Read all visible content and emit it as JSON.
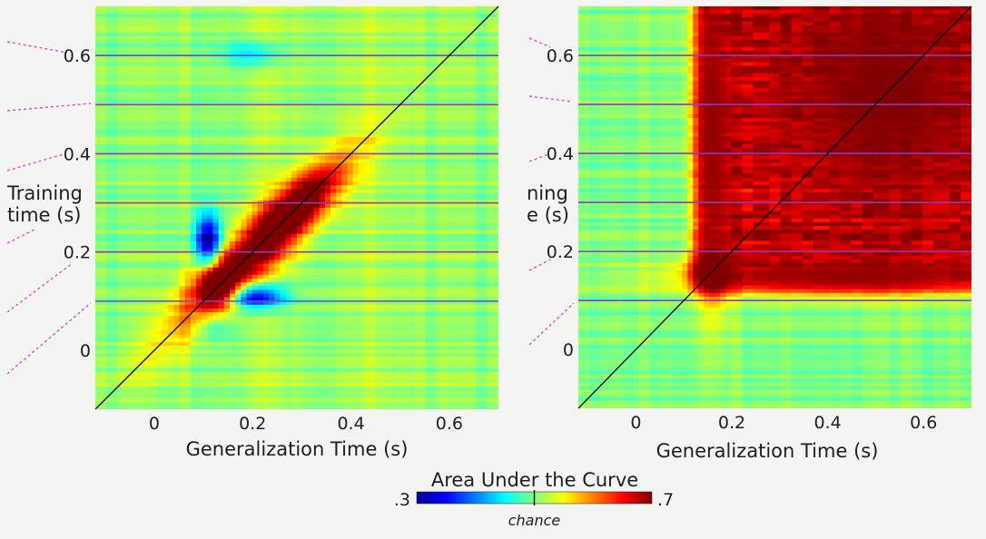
{
  "chart_data": [
    {
      "type": "heatmap",
      "panel": "left",
      "title": "",
      "xlabel": "Generalization Time (s)",
      "ylabel": "Training time (s)",
      "xlim": [
        -0.12,
        0.7
      ],
      "ylim": [
        -0.12,
        0.7
      ],
      "x_ticks": [
        0,
        0.2,
        0.4,
        0.6
      ],
      "x_tick_labels": [
        "0",
        "0.2",
        "0.4",
        "0.6"
      ],
      "y_ticks": [
        0,
        0.2,
        0.4,
        0.6
      ],
      "y_tick_labels": [
        "0",
        "0.2",
        "0.4",
        "0.6"
      ],
      "baseline_auc": 0.505,
      "blobs": [
        {
          "x": 0.2,
          "y": 0.2,
          "sx": 0.16,
          "sy": 0.035,
          "angle": 45,
          "auc": 0.7
        },
        {
          "x": 0.13,
          "y": 0.13,
          "sx": 0.03,
          "sy": 0.03,
          "angle": 0,
          "auc": 0.7
        },
        {
          "x": 0.3,
          "y": 0.3,
          "sx": 0.08,
          "sy": 0.03,
          "angle": 45,
          "auc": 0.64
        },
        {
          "x": 0.11,
          "y": 0.22,
          "sx": 0.018,
          "sy": 0.04,
          "angle": 0,
          "auc": 0.3
        },
        {
          "x": 0.2,
          "y": 0.11,
          "sx": 0.045,
          "sy": 0.018,
          "angle": 0,
          "auc": 0.3
        },
        {
          "x": 0.2,
          "y": 0.6,
          "sx": 0.04,
          "sy": 0.02,
          "angle": 0,
          "auc": 0.44
        },
        {
          "x": 0.12,
          "y": 0.05,
          "sx": 0.025,
          "sy": 0.02,
          "angle": 0,
          "auc": 0.45
        }
      ],
      "diagonal": true,
      "reference_lines_y": [
        0.1,
        0.2,
        0.3,
        0.4,
        0.5,
        0.6
      ]
    },
    {
      "type": "heatmap",
      "panel": "right",
      "title": "",
      "xlabel": "Generalization Time (s)",
      "ylabel": "Training time (s)",
      "ylabel_visible": "ning\ne (s)",
      "xlim": [
        -0.12,
        0.7
      ],
      "ylim": [
        -0.12,
        0.7
      ],
      "x_ticks": [
        0,
        0.2,
        0.4,
        0.6
      ],
      "x_tick_labels": [
        "0",
        "0.2",
        "0.4",
        "0.6"
      ],
      "y_ticks": [
        0,
        0.2,
        0.4,
        0.6
      ],
      "y_tick_labels": [
        "0",
        "0.2",
        "0.4",
        "0.6"
      ],
      "baseline_auc": 0.5,
      "plateau": {
        "x_start": 0.12,
        "y_start": 0.12,
        "auc": 0.67
      },
      "blobs": [
        {
          "x": 0.16,
          "y": 0.16,
          "sx": 0.03,
          "sy": 0.03,
          "angle": 0,
          "auc": 0.7
        },
        {
          "x": 0.45,
          "y": 0.15,
          "sx": 0.22,
          "sy": 0.025,
          "angle": 0,
          "auc": 0.69
        },
        {
          "x": 0.16,
          "y": 0.45,
          "sx": 0.025,
          "sy": 0.22,
          "angle": 0,
          "auc": 0.69
        },
        {
          "x": 0.52,
          "y": 0.52,
          "sx": 0.16,
          "sy": 0.16,
          "angle": 0,
          "auc": 0.7
        }
      ],
      "diagonal": true,
      "reference_lines_y": [
        0.1,
        0.2,
        0.3,
        0.4,
        0.5,
        0.6
      ]
    }
  ],
  "colorbar": {
    "title": "Area Under the Curve",
    "min_label": ".3",
    "max_label": ".7",
    "min": 0.3,
    "max": 0.7,
    "chance_label": "chance",
    "chance_value": 0.5
  },
  "colors": {
    "reference_line": "#8e3fae",
    "diagonal": "#111111",
    "dashed_connector": "#d94fc8"
  }
}
